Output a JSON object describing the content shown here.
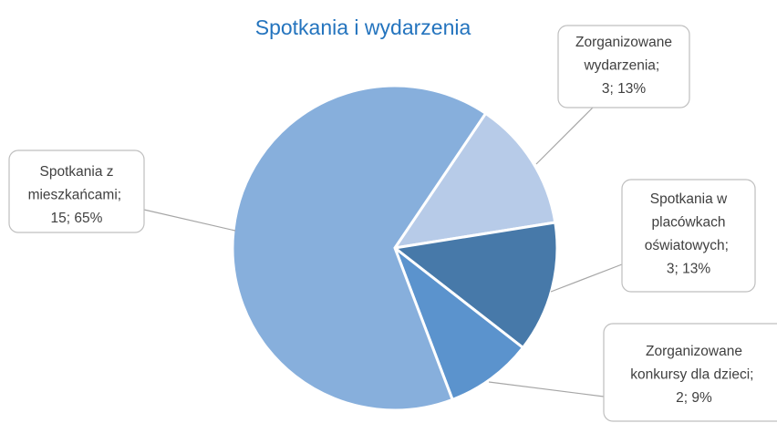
{
  "chart_data": {
    "type": "pie",
    "title": "Spotkania i wydarzenia",
    "categories": [
      "Zorganizowane wydarzenia",
      "Spotkania w placówkach oświatowych ",
      "Zorganizowane konkursy dla dzieci",
      "Spotkania z mieszkańcami"
    ],
    "values": [
      3,
      3,
      2,
      15
    ],
    "percentages": [
      13,
      13,
      9,
      65
    ],
    "percentage_labels": [
      "13%",
      "13%",
      "9%",
      "65%"
    ],
    "separator": "; ",
    "colors": [
      "#b7cbe8",
      "#4779a9",
      "#5b93cd",
      "#87afdc"
    ]
  }
}
